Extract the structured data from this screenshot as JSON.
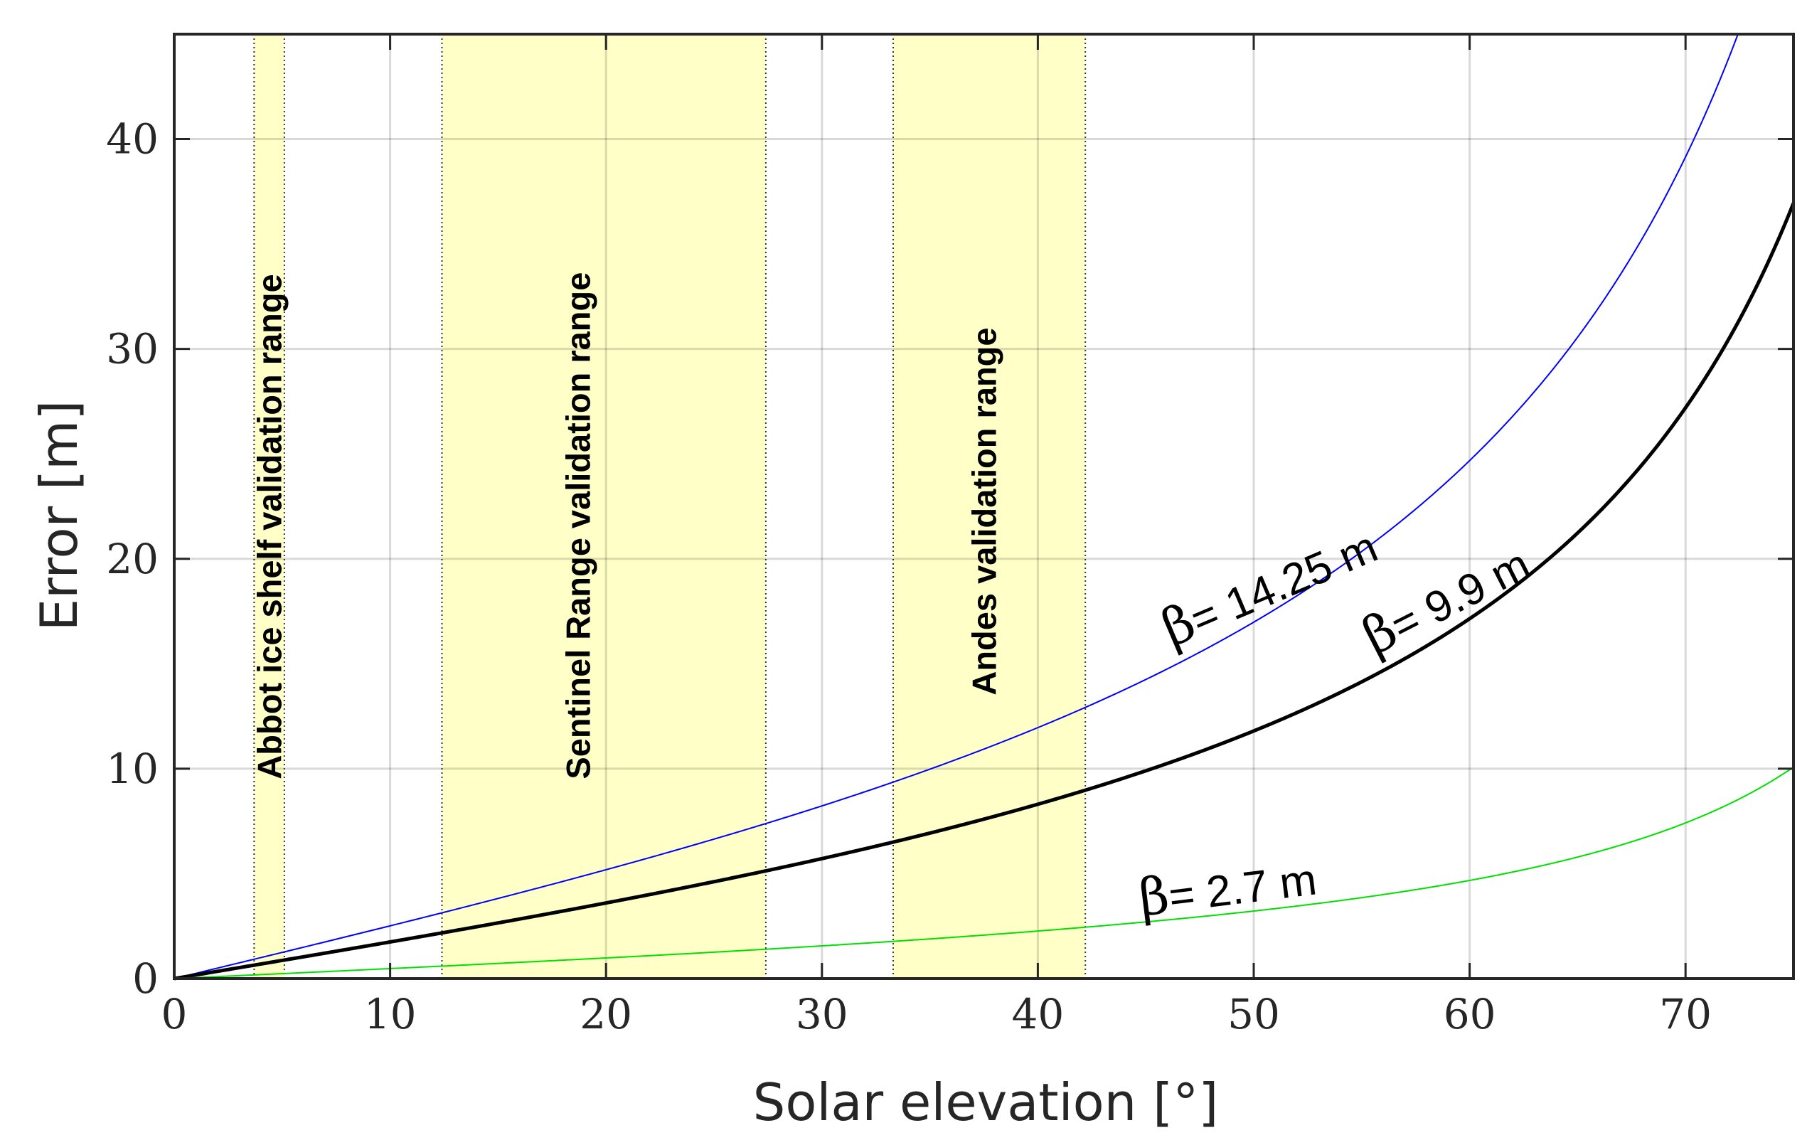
{
  "chart_data": {
    "type": "line",
    "title": "",
    "xlabel": "Solar elevation [°]",
    "ylabel": "Error [m]",
    "xlim": [
      0,
      75
    ],
    "ylim": [
      0,
      45
    ],
    "xticks": [
      0,
      10,
      20,
      30,
      40,
      50,
      60,
      70
    ],
    "yticks": [
      0,
      10,
      20,
      30,
      40
    ],
    "xtick_labels": [
      "0",
      "10",
      "20",
      "30",
      "40",
      "50",
      "60",
      "70"
    ],
    "ytick_labels": [
      "0",
      "10",
      "20",
      "30",
      "40"
    ],
    "grid": true,
    "model": "error = beta * tan(solar elevation)",
    "bands": [
      {
        "name": "abbot",
        "label": "Abbot ice shelf validation range",
        "range": [
          3.7,
          5.1
        ],
        "color": "#ffffc8"
      },
      {
        "name": "sentinel",
        "label": "Sentinel Range validation range",
        "range": [
          12.4,
          27.4
        ],
        "color": "#ffffc8"
      },
      {
        "name": "andes",
        "label": "Andes validation range",
        "range": [
          33.3,
          42.2
        ],
        "color": "#ffffc8"
      }
    ],
    "series": [
      {
        "name": "beta-14.25",
        "beta": 14.25,
        "label_symbol": "β",
        "label_text": "= 14.25 m",
        "color": "#0000ff",
        "x": [
          0,
          10,
          20,
          30,
          40,
          50,
          60,
          70,
          72.4
        ],
        "values": [
          0,
          2.51,
          5.19,
          8.23,
          11.96,
          16.98,
          24.68,
          39.15,
          45
        ]
      },
      {
        "name": "beta-9.9",
        "beta": 9.9,
        "label_symbol": "β",
        "label_text": "= 9.9 m",
        "color": "#000000",
        "x": [
          0,
          10,
          20,
          30,
          40,
          50,
          60,
          70,
          75
        ],
        "values": [
          0,
          1.75,
          3.6,
          5.72,
          8.31,
          11.8,
          17.15,
          27.2,
          36.95
        ]
      },
      {
        "name": "beta-2.7",
        "beta": 2.7,
        "label_symbol": "β",
        "label_text": "= 2.7 m",
        "color": "#00e000",
        "x": [
          0,
          10,
          20,
          30,
          40,
          50,
          60,
          70,
          75
        ],
        "values": [
          0,
          0.48,
          0.98,
          1.56,
          2.27,
          3.22,
          4.68,
          7.42,
          10.08
        ]
      }
    ]
  }
}
